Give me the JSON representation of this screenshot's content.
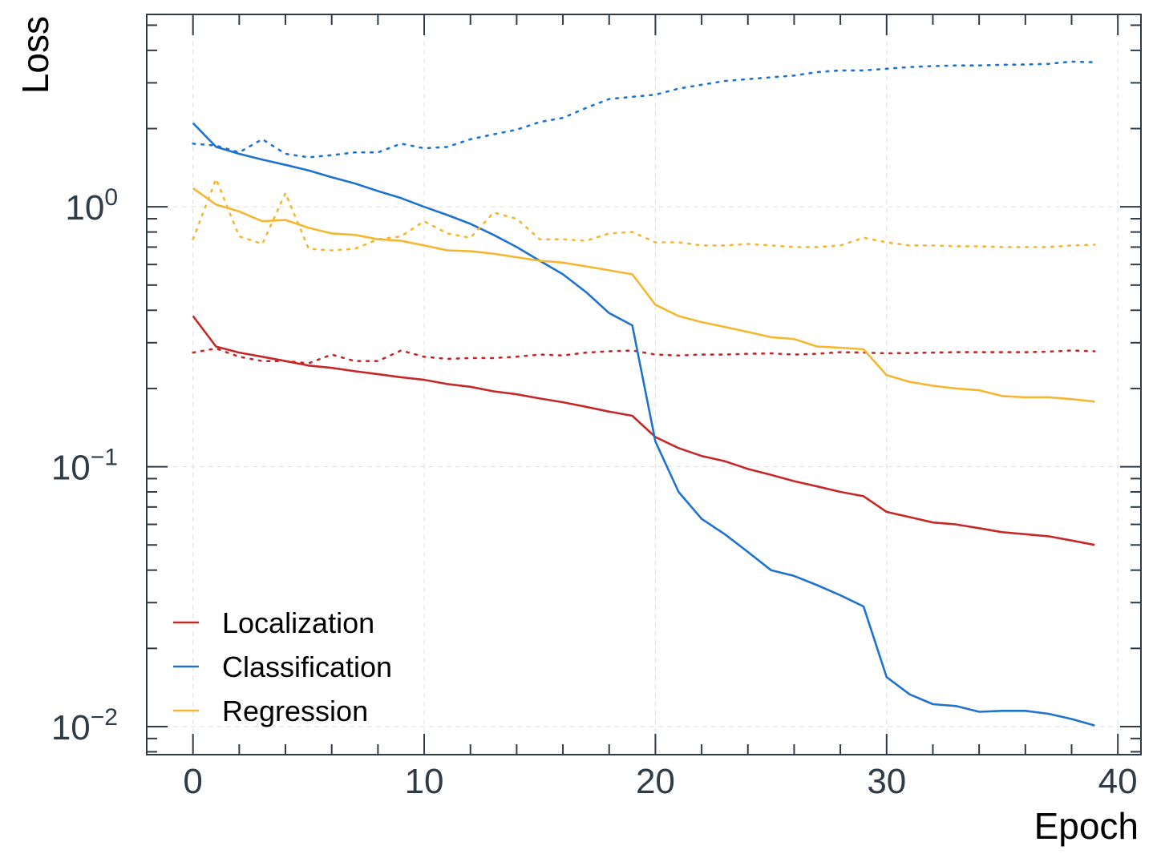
{
  "chart_data": {
    "type": "line",
    "xlabel": "Epoch",
    "ylabel": "Loss",
    "yscale": "log",
    "xlim": [
      -2,
      41
    ],
    "ylim": [
      0.0078,
      5.5
    ],
    "grid": true,
    "legend_position": "lower-left",
    "x_ticks": [
      0,
      10,
      20,
      30,
      40
    ],
    "y_ticks": [
      {
        "value": 1,
        "base": "10",
        "exp": "0"
      },
      {
        "value": 0.1,
        "base": "10",
        "exp": "−1"
      },
      {
        "value": 0.01,
        "base": "10",
        "exp": "−2"
      }
    ],
    "x": [
      0,
      1,
      2,
      3,
      4,
      5,
      6,
      7,
      8,
      9,
      10,
      11,
      12,
      13,
      14,
      15,
      16,
      17,
      18,
      19,
      20,
      21,
      22,
      23,
      24,
      25,
      26,
      27,
      28,
      29,
      30,
      31,
      32,
      33,
      34,
      35,
      36,
      37,
      38,
      39
    ],
    "series": [
      {
        "name": "Localization",
        "color": "#c62828",
        "train": [
          0.38,
          0.29,
          0.275,
          0.265,
          0.255,
          0.245,
          0.24,
          0.233,
          0.227,
          0.221,
          0.216,
          0.208,
          0.203,
          0.195,
          0.19,
          0.183,
          0.177,
          0.17,
          0.163,
          0.157,
          0.13,
          0.118,
          0.11,
          0.105,
          0.098,
          0.093,
          0.088,
          0.084,
          0.08,
          0.077,
          0.067,
          0.064,
          0.061,
          0.06,
          0.058,
          0.056,
          0.055,
          0.054,
          0.052,
          0.05
        ],
        "val": [
          0.275,
          0.285,
          0.265,
          0.255,
          0.255,
          0.25,
          0.27,
          0.255,
          0.255,
          0.28,
          0.265,
          0.26,
          0.262,
          0.262,
          0.265,
          0.27,
          0.268,
          0.275,
          0.278,
          0.28,
          0.27,
          0.268,
          0.27,
          0.27,
          0.272,
          0.273,
          0.27,
          0.272,
          0.276,
          0.275,
          0.273,
          0.274,
          0.275,
          0.276,
          0.276,
          0.276,
          0.276,
          0.277,
          0.28,
          0.278
        ]
      },
      {
        "name": "Classification",
        "color": "#1e73cf",
        "train": [
          2.1,
          1.7,
          1.6,
          1.52,
          1.45,
          1.38,
          1.3,
          1.23,
          1.15,
          1.08,
          1.0,
          0.93,
          0.86,
          0.78,
          0.7,
          0.62,
          0.55,
          0.47,
          0.39,
          0.35,
          0.125,
          0.08,
          0.063,
          0.055,
          0.047,
          0.04,
          0.038,
          0.035,
          0.032,
          0.029,
          0.0155,
          0.0133,
          0.0122,
          0.012,
          0.0114,
          0.0115,
          0.0115,
          0.0112,
          0.0107,
          0.0101
        ],
        "val": [
          1.75,
          1.72,
          1.62,
          1.82,
          1.6,
          1.55,
          1.58,
          1.62,
          1.62,
          1.75,
          1.68,
          1.7,
          1.82,
          1.9,
          1.98,
          2.12,
          2.2,
          2.4,
          2.6,
          2.65,
          2.7,
          2.85,
          2.95,
          3.05,
          3.1,
          3.15,
          3.2,
          3.3,
          3.35,
          3.35,
          3.4,
          3.45,
          3.48,
          3.5,
          3.5,
          3.52,
          3.53,
          3.55,
          3.62,
          3.6
        ]
      },
      {
        "name": "Regression",
        "color": "#f5b731",
        "train": [
          1.18,
          1.02,
          0.96,
          0.88,
          0.89,
          0.83,
          0.79,
          0.78,
          0.75,
          0.74,
          0.71,
          0.68,
          0.675,
          0.66,
          0.64,
          0.62,
          0.61,
          0.59,
          0.57,
          0.55,
          0.42,
          0.38,
          0.36,
          0.345,
          0.33,
          0.315,
          0.31,
          0.29,
          0.287,
          0.283,
          0.225,
          0.212,
          0.205,
          0.2,
          0.197,
          0.187,
          0.185,
          0.185,
          0.182,
          0.178
        ],
        "val": [
          0.75,
          1.28,
          0.77,
          0.72,
          1.13,
          0.69,
          0.68,
          0.69,
          0.75,
          0.77,
          0.88,
          0.79,
          0.76,
          0.95,
          0.9,
          0.75,
          0.75,
          0.74,
          0.79,
          0.8,
          0.73,
          0.73,
          0.71,
          0.71,
          0.72,
          0.71,
          0.7,
          0.7,
          0.71,
          0.76,
          0.73,
          0.71,
          0.71,
          0.705,
          0.705,
          0.7,
          0.7,
          0.7,
          0.71,
          0.715
        ]
      }
    ]
  }
}
